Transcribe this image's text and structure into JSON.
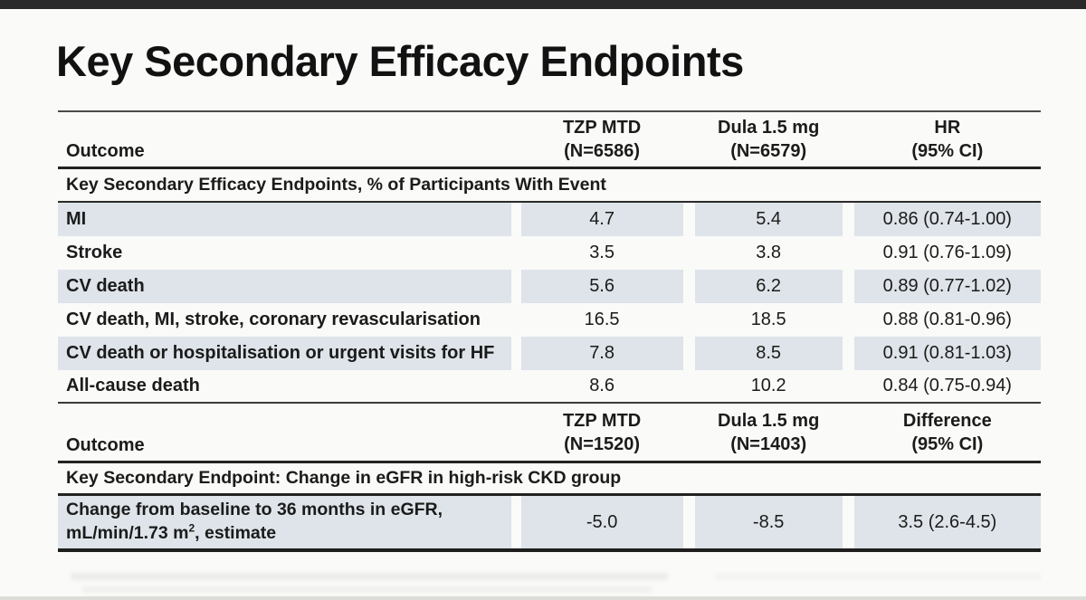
{
  "slide": {
    "title": "Key Secondary Efficacy Endpoints"
  },
  "table1": {
    "header": {
      "outcome": "Outcome",
      "tzp_l1": "TZP MTD",
      "tzp_l2": "(N=6586)",
      "dula_l1": "Dula 1.5 mg",
      "dula_l2": "(N=6579)",
      "stat_l1": "HR",
      "stat_l2": "(95% CI)"
    },
    "section_title": "Key Secondary Efficacy Endpoints, % of Participants With Event",
    "rows": [
      {
        "outcome": "MI",
        "tzp": "4.7",
        "dula": "5.4",
        "stat": "0.86 (0.74-1.00)"
      },
      {
        "outcome": "Stroke",
        "tzp": "3.5",
        "dula": "3.8",
        "stat": "0.91 (0.76-1.09)"
      },
      {
        "outcome": "CV death",
        "tzp": "5.6",
        "dula": "6.2",
        "stat": "0.89 (0.77-1.02)"
      },
      {
        "outcome": "CV death, MI, stroke, coronary revascularisation",
        "tzp": "16.5",
        "dula": "18.5",
        "stat": "0.88 (0.81-0.96)"
      },
      {
        "outcome": "CV death or hospitalisation or urgent visits for HF",
        "tzp": "7.8",
        "dula": "8.5",
        "stat": "0.91 (0.81-1.03)"
      },
      {
        "outcome": "All-cause death",
        "tzp": "8.6",
        "dula": "10.2",
        "stat": "0.84 (0.75-0.94)"
      }
    ]
  },
  "table2": {
    "header": {
      "outcome": "Outcome",
      "tzp_l1": "TZP MTD",
      "tzp_l2": "(N=1520)",
      "dula_l1": "Dula 1.5 mg",
      "dula_l2": "(N=1403)",
      "stat_l1": "Difference",
      "stat_l2": "(95% CI)"
    },
    "section_title": "Key Secondary Endpoint: Change in eGFR in high-risk CKD group",
    "row": {
      "outcome_line1": "Change from baseline to 36 months in eGFR,",
      "outcome_line2_pre": "mL/min/1.73 m",
      "outcome_sup": "2",
      "outcome_line2_post": ", estimate",
      "tzp": "-5.0",
      "dula": "-8.5",
      "stat": "3.5 (2.6-4.5)"
    }
  },
  "colors": {
    "row_shade": "#dee4e9",
    "line_dark": "#222222",
    "background": "#fafaf8",
    "top_bar": "#2a2a2a"
  }
}
